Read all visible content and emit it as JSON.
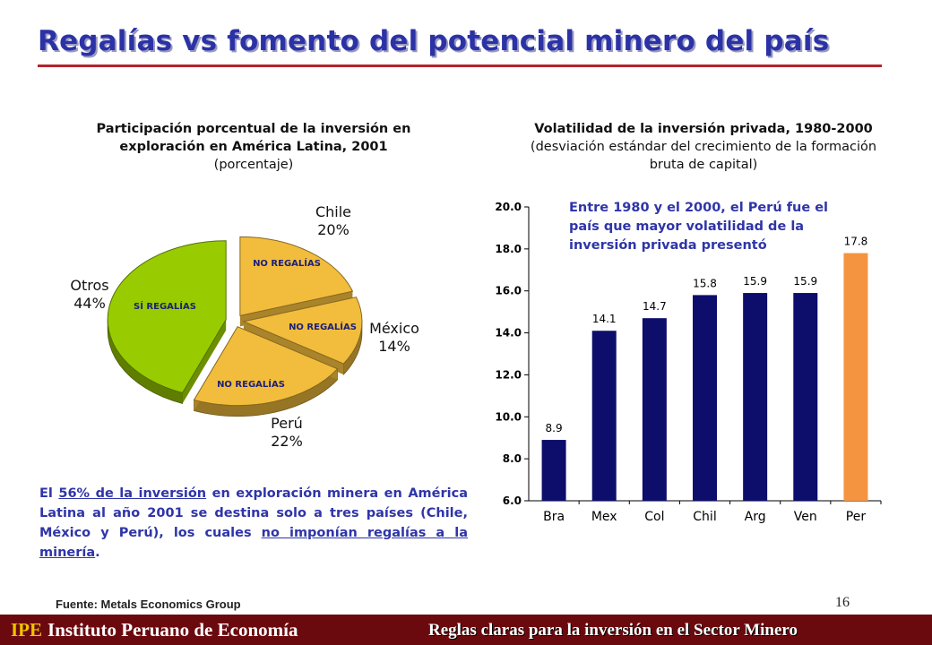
{
  "header": {
    "title": "Regalías vs fomento del potencial minero del país"
  },
  "chart_data": [
    {
      "type": "pie",
      "title_lines": [
        "Participación porcentual de la inversión en",
        "exploración en América Latina, 2001"
      ],
      "subtitle": "(porcentaje)",
      "slices": [
        {
          "label": "Chile",
          "value": 20,
          "value_label": "20%",
          "note": "NO REGALÍAS",
          "color": "#f2bd3c"
        },
        {
          "label": "México",
          "value": 14,
          "value_label": "14%",
          "note": "NO REGALÍAS",
          "color": "#f2bd3c"
        },
        {
          "label": "Perú",
          "value": 22,
          "value_label": "22%",
          "note": "NO REGALÍAS",
          "color": "#f2bd3c"
        },
        {
          "label": "Otros",
          "value": 44,
          "value_label": "44%",
          "note": "SÍ REGALÍAS",
          "color": "#99cc00"
        }
      ]
    },
    {
      "type": "bar",
      "title": "Volatilidad de la inversión privada, 1980-2000",
      "subtitle_lines": [
        "(desviación estándar del crecimiento de la formación",
        "bruta de capital)"
      ],
      "categories": [
        "Bra",
        "Mex",
        "Col",
        "Chil",
        "Arg",
        "Ven",
        "Per"
      ],
      "values": [
        8.9,
        14.1,
        14.7,
        15.8,
        15.9,
        15.9,
        17.8
      ],
      "value_labels": [
        "8.9",
        "14.1",
        "14.7",
        "15.8",
        "15.9",
        "15.9",
        "17.8"
      ],
      "colors": [
        "#0d0d6b",
        "#0d0d6b",
        "#0d0d6b",
        "#0d0d6b",
        "#0d0d6b",
        "#0d0d6b",
        "#f59440"
      ],
      "ylim": [
        6.0,
        20.0
      ],
      "yticks": [
        "6.0",
        "8.0",
        "10.0",
        "12.0",
        "14.0",
        "16.0",
        "18.0",
        "20.0"
      ],
      "annotation": "Entre 1980 y el 2000, el Perú fue el país que mayor volatilidad de la inversión privada presentó"
    }
  ],
  "note": {
    "p1": "El ",
    "link1": "56% de la inversión",
    "p2": " en exploración minera en América Latina al año 2001 se destina solo a tres países (Chile, México y Perú), los cuales ",
    "link2": "no imponían regalías a la minería",
    "p3": "."
  },
  "source": "Fuente: Metals Economics Group",
  "page_number": "16",
  "footer": {
    "acronym": "IPE",
    "org": "Instituto Peruano de Economía",
    "slogan": "Reglas claras para la inversión en el Sector Minero"
  }
}
